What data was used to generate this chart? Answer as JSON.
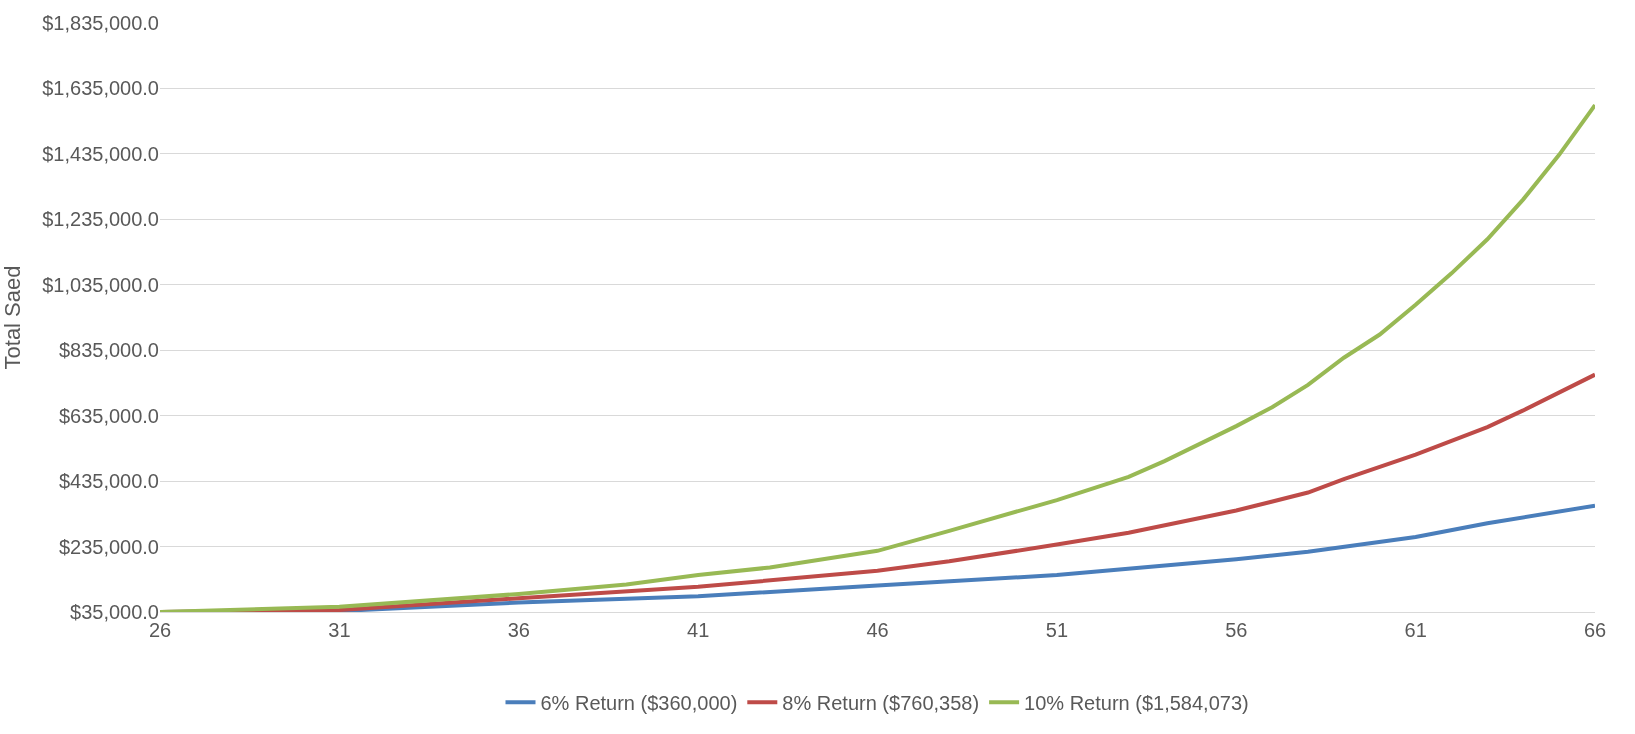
{
  "chart_data": {
    "type": "line",
    "ylabel": "Total Saed",
    "xlim": [
      26,
      66
    ],
    "xticks": [
      26,
      31,
      36,
      41,
      46,
      51,
      56,
      61,
      66
    ],
    "ylim": [
      35000,
      1835000
    ],
    "yticks": [
      {
        "value": 35000,
        "label": "$35,000.0"
      },
      {
        "value": 235000,
        "label": "$235,000.0"
      },
      {
        "value": 435000,
        "label": "$435,000.0"
      },
      {
        "value": 635000,
        "label": "$635,000.0"
      },
      {
        "value": 835000,
        "label": "$835,000.0"
      },
      {
        "value": 1035000,
        "label": "$1,035,000.0"
      },
      {
        "value": 1235000,
        "label": "$1,235,000.0"
      },
      {
        "value": 1435000,
        "label": "$1,435,000.0"
      },
      {
        "value": 1635000,
        "label": "$1,635,000.0"
      },
      {
        "value": 1835000,
        "label": "$1,835,000.0"
      }
    ],
    "grid": "y",
    "legend": "bottom",
    "marker": "none",
    "line_style": "solid",
    "series": [
      {
        "name": "6% Return ($360,000)",
        "color": "#4a7ebb",
        "x": [
          26,
          31,
          36,
          41,
          46,
          51,
          56,
          58,
          61,
          63,
          66
        ],
        "values": [
          35000,
          38000,
          64000,
          83000,
          116000,
          148000,
          196000,
          219000,
          264000,
          306000,
          360000
        ]
      },
      {
        "name": "8% Return ($760,358)",
        "color": "#be4b48",
        "x": [
          26,
          31,
          36,
          41,
          46,
          48,
          51,
          53,
          56,
          58,
          59,
          61,
          63,
          64,
          66
        ],
        "values": [
          35000,
          41000,
          77000,
          112000,
          161000,
          190000,
          241000,
          277000,
          345000,
          400000,
          441000,
          516000,
          600000,
          651000,
          760358
        ]
      },
      {
        "name": "10% Return ($1,584,073)",
        "color": "#98b954",
        "x": [
          26,
          31,
          36,
          39,
          41,
          43,
          46,
          48,
          51,
          53,
          54,
          56,
          57,
          58,
          59,
          60,
          61,
          62,
          63,
          64,
          65,
          66
        ],
        "values": [
          35000,
          51000,
          90000,
          119000,
          148000,
          171000,
          222000,
          283000,
          377000,
          448000,
          496000,
          603000,
          661000,
          729000,
          812000,
          883000,
          974000,
          1070000,
          1174000,
          1296000,
          1432000,
          1584073
        ]
      }
    ]
  }
}
